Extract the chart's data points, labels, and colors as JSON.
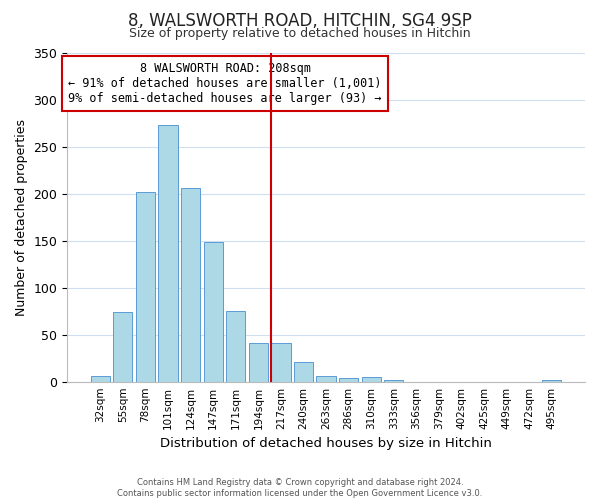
{
  "title": "8, WALSWORTH ROAD, HITCHIN, SG4 9SP",
  "subtitle": "Size of property relative to detached houses in Hitchin",
  "xlabel": "Distribution of detached houses by size in Hitchin",
  "ylabel": "Number of detached properties",
  "bar_labels": [
    "32sqm",
    "55sqm",
    "78sqm",
    "101sqm",
    "124sqm",
    "147sqm",
    "171sqm",
    "194sqm",
    "217sqm",
    "240sqm",
    "263sqm",
    "286sqm",
    "310sqm",
    "333sqm",
    "356sqm",
    "379sqm",
    "402sqm",
    "425sqm",
    "449sqm",
    "472sqm",
    "495sqm"
  ],
  "bar_values": [
    6,
    74,
    202,
    273,
    206,
    149,
    75,
    41,
    41,
    21,
    6,
    4,
    5,
    2,
    0,
    0,
    0,
    0,
    0,
    0,
    2
  ],
  "bar_color": "#add8e6",
  "bar_edge_color": "#5b9bd5",
  "vline_index": 8,
  "vline_color": "#cc0000",
  "annotation_title": "8 WALSWORTH ROAD: 208sqm",
  "annotation_line1": "← 91% of detached houses are smaller (1,001)",
  "annotation_line2": "9% of semi-detached houses are larger (93) →",
  "annotation_box_color": "#ffffff",
  "annotation_box_edge_color": "#cc0000",
  "ylim": [
    0,
    350
  ],
  "yticks": [
    0,
    50,
    100,
    150,
    200,
    250,
    300,
    350
  ],
  "footer_line1": "Contains HM Land Registry data © Crown copyright and database right 2024.",
  "footer_line2": "Contains public sector information licensed under the Open Government Licence v3.0.",
  "background_color": "#ffffff",
  "grid_color": "#d0dff0"
}
